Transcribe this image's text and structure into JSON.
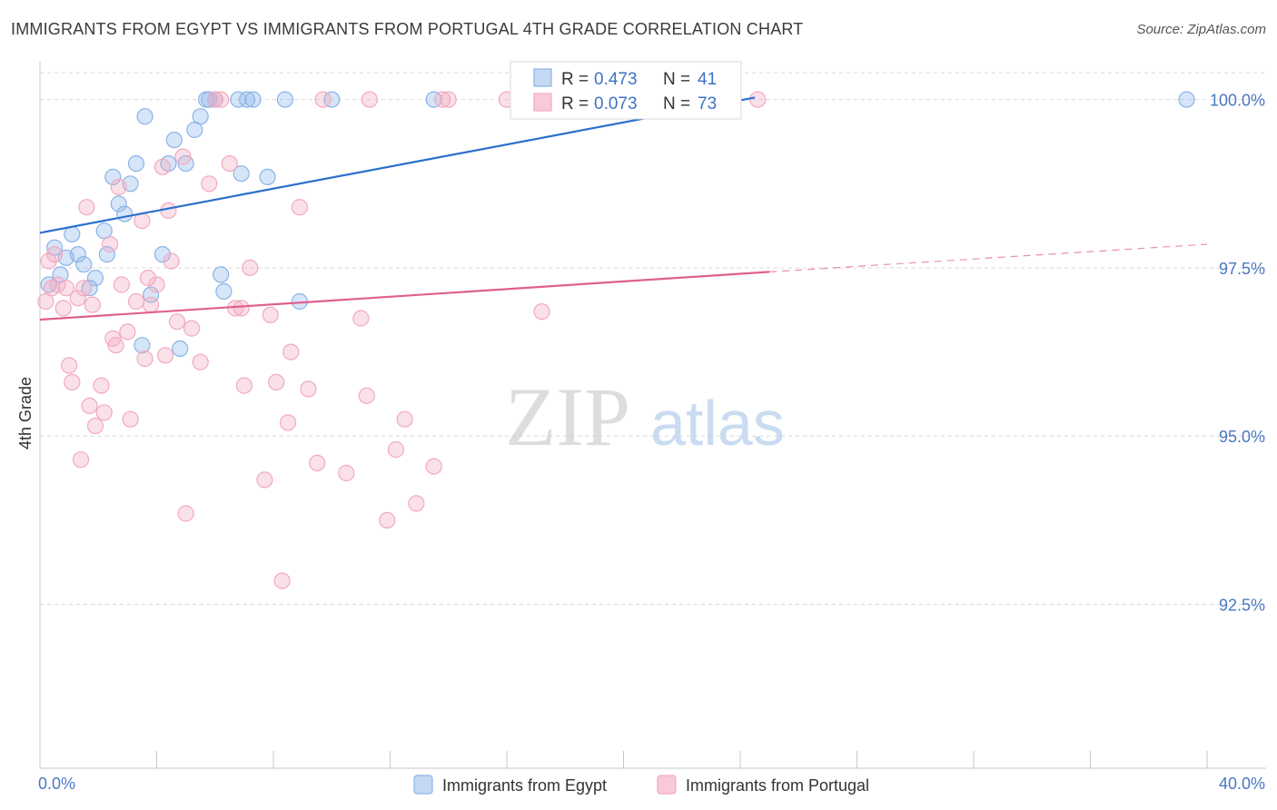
{
  "header": {
    "title": "IMMIGRANTS FROM EGYPT VS IMMIGRANTS FROM PORTUGAL 4TH GRADE CORRELATION CHART",
    "source": "Source: ZipAtlas.com"
  },
  "watermark": {
    "zip": "ZIP",
    "atlas": "atlas"
  },
  "chart_data": {
    "type": "scatter",
    "title": "IMMIGRANTS FROM EGYPT VS IMMIGRANTS FROM PORTUGAL 4TH GRADE CORRELATION CHART",
    "xlabel": "",
    "ylabel": "4th Grade",
    "xlim": [
      0,
      40
    ],
    "ylim": [
      90.2,
      100.4
    ],
    "x_tick_labels": {
      "left": "0.0%",
      "right": "40.0%"
    },
    "y_ticks": [
      {
        "value": 100.0,
        "label": "100.0%"
      },
      {
        "value": 97.5,
        "label": "97.5%"
      },
      {
        "value": 95.0,
        "label": "95.0%"
      },
      {
        "value": 92.5,
        "label": "92.5%"
      }
    ],
    "grid": true,
    "legend_position": "bottom",
    "stats_box_position": "top-center",
    "series": [
      {
        "name": "Immigrants from Egypt",
        "color": "#8ab4e8",
        "line_color": "#2b6fce",
        "R": "0.473",
        "N": "41",
        "trend": {
          "x0": 0.0,
          "y0": 98.02,
          "x1": 24.5,
          "y1": 100.03,
          "dashed_to": null
        },
        "points": [
          [
            0.3,
            97.25
          ],
          [
            0.5,
            97.8
          ],
          [
            0.7,
            97.4
          ],
          [
            0.9,
            97.65
          ],
          [
            1.1,
            98.0
          ],
          [
            1.3,
            97.7
          ],
          [
            1.5,
            97.55
          ],
          [
            1.7,
            97.2
          ],
          [
            1.9,
            97.35
          ],
          [
            2.2,
            98.05
          ],
          [
            2.3,
            97.7
          ],
          [
            2.5,
            98.85
          ],
          [
            2.7,
            98.45
          ],
          [
            2.9,
            98.3
          ],
          [
            3.1,
            98.75
          ],
          [
            3.3,
            99.05
          ],
          [
            3.5,
            96.35
          ],
          [
            3.6,
            99.75
          ],
          [
            3.8,
            97.1
          ],
          [
            4.2,
            97.7
          ],
          [
            4.4,
            99.05
          ],
          [
            4.6,
            99.4
          ],
          [
            4.8,
            96.3
          ],
          [
            5.0,
            99.05
          ],
          [
            5.3,
            99.55
          ],
          [
            5.5,
            99.75
          ],
          [
            5.7,
            100.0
          ],
          [
            5.8,
            100.0
          ],
          [
            6.0,
            100.0
          ],
          [
            6.2,
            97.4
          ],
          [
            6.3,
            97.15
          ],
          [
            6.8,
            100.0
          ],
          [
            6.9,
            98.9
          ],
          [
            7.1,
            100.0
          ],
          [
            7.3,
            100.0
          ],
          [
            7.8,
            98.85
          ],
          [
            8.9,
            97.0
          ],
          [
            8.4,
            100.0
          ],
          [
            10.0,
            100.0
          ],
          [
            13.5,
            100.0
          ],
          [
            39.3,
            100.0
          ]
        ]
      },
      {
        "name": "Immigrants from Portugal",
        "color": "#f2a9c0",
        "line_color": "#e06090",
        "R": "0.073",
        "N": "73",
        "trend": {
          "x0": 0.0,
          "y0": 96.73,
          "x1": 25.0,
          "y1": 97.44,
          "dashed_to": {
            "x": 40.0,
            "y": 97.85
          }
        },
        "points": [
          [
            0.2,
            97.0
          ],
          [
            0.3,
            97.6
          ],
          [
            0.4,
            97.2
          ],
          [
            0.5,
            97.7
          ],
          [
            0.6,
            97.25
          ],
          [
            0.8,
            96.9
          ],
          [
            0.9,
            97.2
          ],
          [
            1.0,
            96.05
          ],
          [
            1.1,
            95.8
          ],
          [
            1.3,
            97.05
          ],
          [
            1.4,
            94.65
          ],
          [
            1.5,
            97.2
          ],
          [
            1.6,
            98.4
          ],
          [
            1.7,
            95.45
          ],
          [
            1.8,
            96.95
          ],
          [
            1.9,
            95.15
          ],
          [
            2.1,
            95.75
          ],
          [
            2.2,
            95.35
          ],
          [
            2.4,
            97.85
          ],
          [
            2.5,
            96.45
          ],
          [
            2.6,
            96.35
          ],
          [
            2.7,
            98.7
          ],
          [
            2.8,
            97.25
          ],
          [
            3.0,
            96.55
          ],
          [
            3.1,
            95.25
          ],
          [
            3.3,
            97.0
          ],
          [
            3.5,
            98.2
          ],
          [
            3.6,
            96.15
          ],
          [
            3.7,
            97.35
          ],
          [
            3.8,
            96.95
          ],
          [
            4.0,
            97.25
          ],
          [
            4.2,
            99.0
          ],
          [
            4.3,
            96.2
          ],
          [
            4.4,
            98.35
          ],
          [
            4.5,
            97.6
          ],
          [
            4.7,
            96.7
          ],
          [
            4.9,
            99.15
          ],
          [
            5.0,
            93.85
          ],
          [
            5.2,
            96.6
          ],
          [
            5.5,
            96.1
          ],
          [
            5.8,
            98.75
          ],
          [
            6.0,
            100.0
          ],
          [
            6.2,
            100.0
          ],
          [
            6.5,
            99.05
          ],
          [
            6.7,
            96.9
          ],
          [
            6.9,
            96.9
          ],
          [
            7.0,
            95.75
          ],
          [
            7.2,
            97.5
          ],
          [
            7.7,
            94.35
          ],
          [
            7.9,
            96.8
          ],
          [
            8.1,
            95.8
          ],
          [
            8.3,
            92.85
          ],
          [
            8.5,
            95.2
          ],
          [
            8.6,
            96.25
          ],
          [
            8.9,
            98.4
          ],
          [
            9.2,
            95.7
          ],
          [
            9.5,
            94.6
          ],
          [
            9.7,
            100.0
          ],
          [
            10.5,
            94.45
          ],
          [
            11.0,
            96.75
          ],
          [
            11.2,
            95.6
          ],
          [
            11.3,
            100.0
          ],
          [
            11.9,
            93.75
          ],
          [
            12.2,
            94.8
          ],
          [
            12.5,
            95.25
          ],
          [
            12.9,
            94.0
          ],
          [
            13.5,
            94.55
          ],
          [
            13.8,
            100.0
          ],
          [
            14.0,
            100.0
          ],
          [
            16.0,
            100.0
          ],
          [
            17.2,
            96.85
          ],
          [
            21.5,
            100.0
          ],
          [
            24.6,
            100.0
          ]
        ]
      }
    ]
  },
  "colors": {
    "axis_tick_text": "#4a78c2",
    "grid": "#d9d9d9",
    "watermark_zip": "#cfcfcf",
    "watermark_atlas": "#bcd3ee"
  }
}
